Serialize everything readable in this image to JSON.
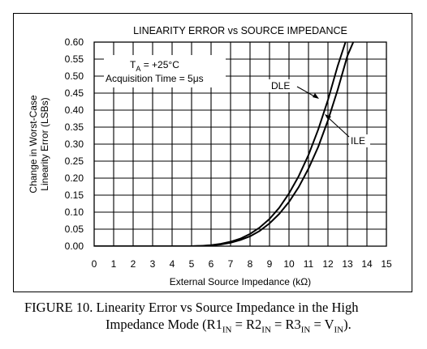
{
  "chart_data": {
    "type": "line",
    "title": "LINEARITY ERROR vs SOURCE IMPEDANCE",
    "xlabel": "External Source Impedance (kΩ)",
    "ylabel_line1": "Change in Worst-Case",
    "ylabel_line2": "Linearity Error (LSBs)",
    "xlim": [
      0,
      15
    ],
    "ylim": [
      0,
      0.6
    ],
    "x_ticks": [
      "0",
      "1",
      "2",
      "3",
      "4",
      "5",
      "6",
      "7",
      "8",
      "9",
      "10",
      "11",
      "12",
      "13",
      "14",
      "15"
    ],
    "y_ticks": [
      "0.00",
      "0.05",
      "0.10",
      "0.15",
      "0.20",
      "0.25",
      "0.30",
      "0.35",
      "0.40",
      "0.45",
      "0.50",
      "0.55",
      "0.60"
    ],
    "grid": true,
    "annotation": {
      "cond1_main": "T",
      "cond1_sub": "A",
      "cond1_rest": " = +25°C",
      "cond2": "Acquisition Time = 5μs"
    },
    "series": [
      {
        "name": "DLE",
        "x": [
          0,
          5,
          5.5,
          6,
          6.5,
          7,
          7.5,
          8,
          8.5,
          9,
          9.5,
          10,
          10.5,
          11,
          11.5,
          12,
          12.5,
          12.9
        ],
        "y": [
          0,
          0,
          0.001,
          0.003,
          0.007,
          0.013,
          0.022,
          0.036,
          0.055,
          0.08,
          0.113,
          0.155,
          0.206,
          0.268,
          0.343,
          0.43,
          0.53,
          0.6
        ]
      },
      {
        "name": "ILE",
        "x": [
          0,
          5,
          5.5,
          6,
          6.5,
          7,
          7.5,
          8,
          8.5,
          9,
          9.5,
          10,
          10.5,
          11,
          11.5,
          12,
          12.5,
          13,
          13.3
        ],
        "y": [
          0,
          0,
          0.001,
          0.002,
          0.005,
          0.01,
          0.018,
          0.029,
          0.045,
          0.067,
          0.095,
          0.13,
          0.174,
          0.228,
          0.292,
          0.37,
          0.46,
          0.56,
          0.6
        ]
      }
    ]
  },
  "caption": {
    "prefix": "FIGURE 10. Linearity Error vs Source Impedance in the High",
    "line2_start": "Impedance Mode (R1",
    "sub1": "IN",
    "eq1": " = R2",
    "sub2": "IN",
    "eq2": " = R3",
    "sub3": "IN",
    "eq3": " = V",
    "sub4": "IN",
    "end": ")."
  }
}
